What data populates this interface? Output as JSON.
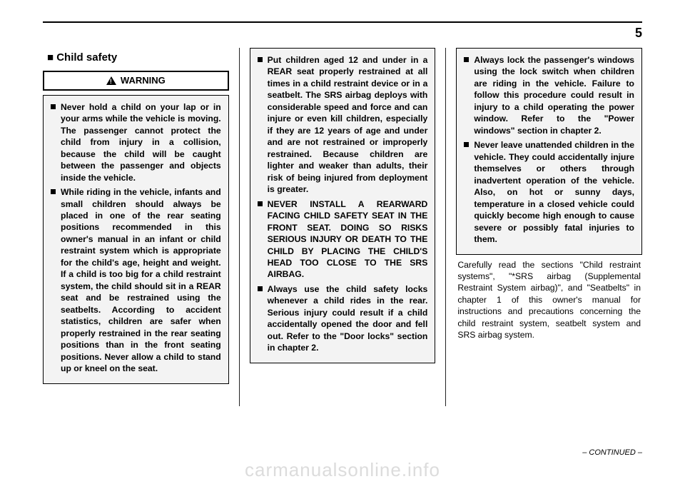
{
  "page_number": "5",
  "section_title": "■ Child safety",
  "warning_label": "WARNING",
  "col1_box_items": [
    "Never hold a child on your lap or in your arms while the vehicle is moving. The passenger cannot protect the child from injury in a collision, because the child will be caught between the passenger and objects inside the vehicle.",
    "While riding in the vehicle, infants and small children should always be placed in one of the rear seating positions recommended in this owner's manual in an infant or child restraint system which is appropriate for the child's age, height and weight. If a child is too big for a child restraint system, the child should sit in a REAR seat and be restrained using the seatbelts. According to accident statistics, children are safer when properly restrained in the rear seating positions than in the front seating positions. Never allow a child to stand up or kneel on the seat."
  ],
  "col2_box_items": [
    "Put children aged 12 and under in a REAR seat properly restrained at all times in a child restraint device or in a seatbelt. The SRS airbag deploys with considerable speed and force and can injure or even kill children, especially if they are 12 years of age and under and are not restrained or improperly restrained. Because children are lighter and weaker than adults, their risk of being injured from deployment is greater.",
    "NEVER INSTALL A REARWARD FACING CHILD SAFETY SEAT IN THE FRONT SEAT. DOING SO RISKS SERIOUS INJURY OR DEATH TO THE CHILD BY PLACING THE CHILD'S HEAD TOO CLOSE TO THE SRS AIRBAG.",
    "Always use the child safety locks whenever a child rides in the rear. Serious injury could result if a child accidentally opened the door and fell out. Refer to the \"Door locks\" section in chapter 2."
  ],
  "col3_box_items": [
    "Always lock the passenger's windows using the lock switch when children are riding in the vehicle. Failure to follow this procedure could result in injury to a child operating the power window. Refer to the \"Power windows\" section in chapter 2.",
    "Never leave unattended children in the vehicle. They could accidentally injure themselves or others through inadvertent operation of the vehicle. Also, on hot or sunny days, temperature in a closed vehicle could quickly become high enough to cause severe or possibly fatal injuries to them."
  ],
  "col3_body": "Carefully read the sections \"Child restraint systems\", \"*SRS airbag (Supplemental Restraint System airbag)\", and \"Seatbelts\" in chapter 1 of this owner's manual for instructions and precautions concerning the child restraint system, seatbelt system and SRS airbag system.",
  "continued": "– CONTINUED –",
  "watermark": "carmanualsonline.info"
}
